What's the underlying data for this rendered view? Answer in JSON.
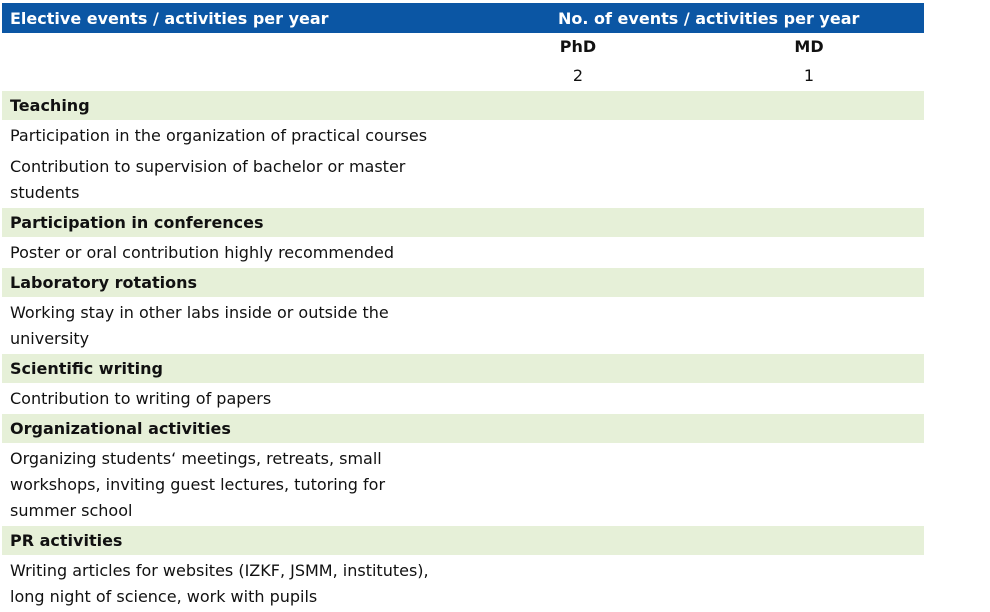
{
  "header": {
    "left": "Elective events / activities per year",
    "right": "No. of events / activities per year"
  },
  "columns": {
    "phd_label": "PhD",
    "md_label": "MD",
    "phd_value": "2",
    "md_value": "1"
  },
  "sections": [
    {
      "title": "Teaching",
      "items": [
        "Participation in the organization of practical courses",
        "Contribution to supervision of bachelor or master students"
      ]
    },
    {
      "title": "Participation in conferences",
      "items": [
        "Poster or oral contribution highly recommended"
      ]
    },
    {
      "title": "Laboratory rotations",
      "items": [
        "Working stay in other labs inside or outside the university"
      ]
    },
    {
      "title": "Scientific writing",
      "items": [
        "Contribution to writing of papers"
      ]
    },
    {
      "title": "Organizational activities",
      "items": [
        "Organizing students‘ meetings, retreats, small workshops, inviting guest lectures, tutoring for summer school"
      ]
    },
    {
      "title": "PR activities",
      "items": [
        "Writing articles for websites (IZKF, JSMM, institutes), long night of science, work with pupils"
      ]
    }
  ]
}
